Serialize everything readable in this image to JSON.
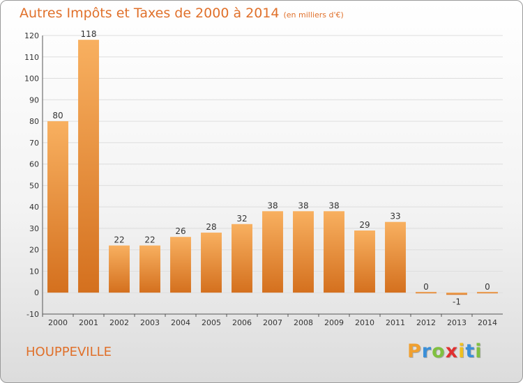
{
  "title": "Autres Impôts et Taxes de 2000 à 2014",
  "unit": "(en milliers d'€)",
  "commune": "HOUPPEVILLE",
  "logo": {
    "letters": [
      "P",
      "r",
      "o",
      "x",
      "i",
      "t",
      "i"
    ],
    "colors": [
      "#f0a030",
      "#3a8fd8",
      "#80c040",
      "#e03030",
      "#f0c020",
      "#3a8fd8",
      "#80c040"
    ]
  },
  "colors": {
    "bar": "#f2963a",
    "bar_dark": "#d4701e",
    "bar_light": "#f8b060",
    "grid": "#dddddd",
    "accent": "#e0702a"
  },
  "chart_data": {
    "type": "bar",
    "categories": [
      "2000",
      "2001",
      "2002",
      "2003",
      "2004",
      "2005",
      "2006",
      "2007",
      "2008",
      "2009",
      "2010",
      "2011",
      "2012",
      "2013",
      "2014"
    ],
    "values": [
      80,
      118,
      22,
      22,
      26,
      28,
      32,
      38,
      38,
      38,
      29,
      33,
      0,
      -1,
      0
    ],
    "ylim": [
      -10,
      120
    ],
    "yticks": [
      -10,
      0,
      10,
      20,
      30,
      40,
      50,
      60,
      70,
      80,
      90,
      100,
      110,
      120
    ],
    "grid": true,
    "title": "Autres Impôts et Taxes de 2000 à 2014",
    "xlabel": "",
    "ylabel": ""
  }
}
